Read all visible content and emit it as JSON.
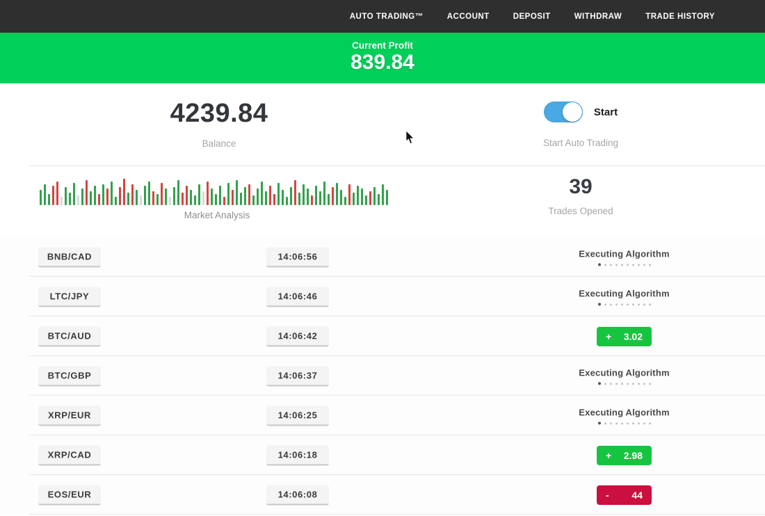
{
  "nav": {
    "items": [
      {
        "label": "AUTO TRADING™"
      },
      {
        "label": "ACCOUNT"
      },
      {
        "label": "DEPOSIT"
      },
      {
        "label": "WITHDRAW"
      },
      {
        "label": "TRADE HISTORY"
      }
    ],
    "bg_color": "#2f2f2f"
  },
  "profit_banner": {
    "label": "Current Profit",
    "value": "839.84",
    "bg_color": "#00d05a"
  },
  "account": {
    "balance_value": "4239.84",
    "balance_label": "Balance",
    "toggle_state": "on",
    "toggle_label": "Start",
    "toggle_sublabel": "Start Auto Trading",
    "toggle_color": "#4aa9e2"
  },
  "market": {
    "label": "Market Analysis",
    "trades_opened_value": "39",
    "trades_opened_label": "Trades Opened",
    "bar_colors": {
      "g": "#31a24c",
      "r": "#d4453e",
      "w": "#dadada"
    },
    "bars": [
      [
        22,
        "g"
      ],
      [
        30,
        "g"
      ],
      [
        16,
        "g"
      ],
      [
        28,
        "r"
      ],
      [
        34,
        "r"
      ],
      [
        12,
        "w"
      ],
      [
        26,
        "g"
      ],
      [
        18,
        "g"
      ],
      [
        32,
        "g"
      ],
      [
        14,
        "w"
      ],
      [
        24,
        "g"
      ],
      [
        36,
        "r"
      ],
      [
        20,
        "g"
      ],
      [
        28,
        "g"
      ],
      [
        16,
        "r"
      ],
      [
        30,
        "g"
      ],
      [
        24,
        "r"
      ],
      [
        34,
        "g"
      ],
      [
        12,
        "g"
      ],
      [
        26,
        "r"
      ],
      [
        38,
        "r"
      ],
      [
        18,
        "g"
      ],
      [
        30,
        "r"
      ],
      [
        22,
        "g"
      ],
      [
        14,
        "w"
      ],
      [
        28,
        "g"
      ],
      [
        34,
        "g"
      ],
      [
        20,
        "r"
      ],
      [
        16,
        "g"
      ],
      [
        32,
        "r"
      ],
      [
        24,
        "g"
      ],
      [
        12,
        "w"
      ],
      [
        26,
        "g"
      ],
      [
        36,
        "g"
      ],
      [
        18,
        "r"
      ],
      [
        28,
        "r"
      ],
      [
        22,
        "g"
      ],
      [
        14,
        "g"
      ],
      [
        30,
        "g"
      ],
      [
        20,
        "w"
      ],
      [
        34,
        "r"
      ],
      [
        24,
        "g"
      ],
      [
        16,
        "g"
      ],
      [
        28,
        "g"
      ],
      [
        12,
        "r"
      ],
      [
        32,
        "g"
      ],
      [
        22,
        "r"
      ],
      [
        36,
        "g"
      ],
      [
        18,
        "g"
      ],
      [
        26,
        "g"
      ],
      [
        30,
        "r"
      ],
      [
        14,
        "g"
      ],
      [
        24,
        "g"
      ],
      [
        34,
        "g"
      ],
      [
        20,
        "g"
      ],
      [
        28,
        "r"
      ],
      [
        16,
        "r"
      ],
      [
        32,
        "g"
      ],
      [
        22,
        "g"
      ],
      [
        12,
        "g"
      ],
      [
        26,
        "g"
      ],
      [
        36,
        "r"
      ],
      [
        18,
        "g"
      ],
      [
        30,
        "g"
      ],
      [
        24,
        "g"
      ],
      [
        14,
        "r"
      ],
      [
        28,
        "g"
      ],
      [
        20,
        "g"
      ],
      [
        34,
        "g"
      ],
      [
        16,
        "g"
      ],
      [
        26,
        "r"
      ],
      [
        32,
        "g"
      ],
      [
        22,
        "g"
      ],
      [
        12,
        "g"
      ],
      [
        30,
        "r"
      ],
      [
        18,
        "g"
      ],
      [
        28,
        "g"
      ],
      [
        24,
        "g"
      ],
      [
        14,
        "g"
      ],
      [
        20,
        "r"
      ],
      [
        26,
        "g"
      ],
      [
        16,
        "g"
      ],
      [
        30,
        "g"
      ],
      [
        22,
        "g"
      ]
    ]
  },
  "trades": {
    "executing_label": "Executing Algorithm",
    "dots_count": 10,
    "result_colors": {
      "green": "#17c440",
      "red": "#cb0f3e"
    },
    "rows": [
      {
        "pair": "BNB/CAD",
        "time": "14:06:56",
        "status": "executing"
      },
      {
        "pair": "LTC/JPY",
        "time": "14:06:46",
        "status": "executing"
      },
      {
        "pair": "BTC/AUD",
        "time": "14:06:42",
        "status": "result",
        "sign": "+",
        "value": "3.02",
        "color": "green"
      },
      {
        "pair": "BTC/GBP",
        "time": "14:06:37",
        "status": "executing"
      },
      {
        "pair": "XRP/EUR",
        "time": "14:06:25",
        "status": "executing"
      },
      {
        "pair": "XRP/CAD",
        "time": "14:06:18",
        "status": "result",
        "sign": "+",
        "value": "2.98",
        "color": "green"
      },
      {
        "pair": "EOS/EUR",
        "time": "14:06:08",
        "status": "result",
        "sign": "-",
        "value": "44",
        "color": "red"
      }
    ]
  }
}
